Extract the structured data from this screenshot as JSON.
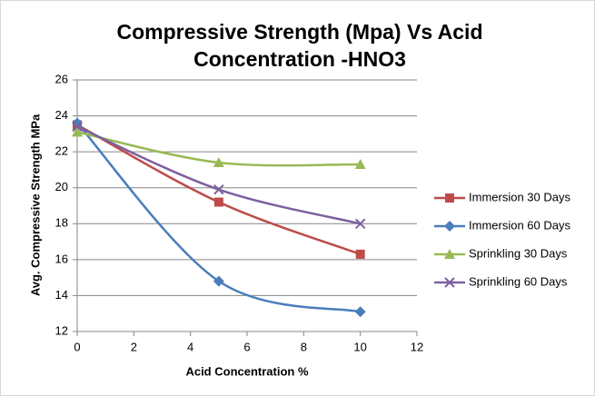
{
  "chart_data": {
    "type": "line",
    "title": "Compressive Strength (Mpa) Vs Acid Concentration -HNO3",
    "xlabel": "Acid Concentration %",
    "ylabel": "Avg. Compressive Strength MPa",
    "x": [
      0,
      5,
      10
    ],
    "series": [
      {
        "name": "Immersion 30 Days",
        "color": "#be4b48",
        "marker": "square",
        "values": [
          23.5,
          19.2,
          16.3
        ]
      },
      {
        "name": "Immersion 60 Days",
        "color": "#4a7ebb",
        "marker": "diamond",
        "values": [
          23.6,
          14.8,
          13.1
        ]
      },
      {
        "name": "Sprinkling 30 Days",
        "color": "#98b954",
        "marker": "triangle",
        "values": [
          23.1,
          21.4,
          21.3
        ]
      },
      {
        "name": "Sprinkling 60 Days",
        "color": "#7d60a0",
        "marker": "x",
        "values": [
          23.4,
          19.9,
          18.0
        ]
      }
    ],
    "xlim": [
      0,
      12
    ],
    "xticks": [
      0,
      2,
      4,
      6,
      8,
      10,
      12
    ],
    "ylim": [
      12,
      26
    ],
    "yticks": [
      12,
      14,
      16,
      18,
      20,
      22,
      24,
      26
    ],
    "grid": true,
    "smooth": true,
    "legend": "right"
  }
}
